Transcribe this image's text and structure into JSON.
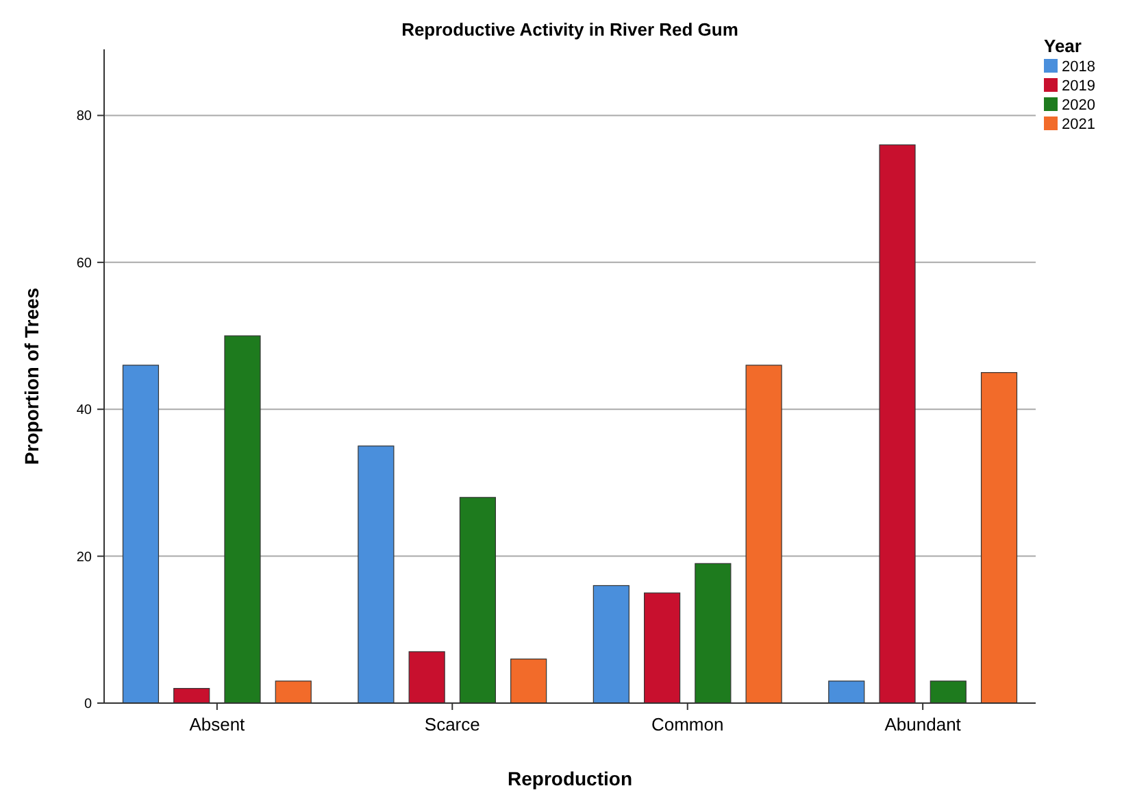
{
  "chart_data": {
    "type": "bar",
    "title": "Reproductive Activity in River Red Gum",
    "xlabel": "Reproduction",
    "ylabel": "Proportion of Trees",
    "legend_title": "Year",
    "categories": [
      "Absent",
      "Scarce",
      "Common",
      "Abundant"
    ],
    "series": [
      {
        "name": "2018",
        "color": "#4a8fdc",
        "values": [
          46,
          35,
          16,
          3
        ]
      },
      {
        "name": "2019",
        "color": "#c8102e",
        "values": [
          2,
          7,
          15,
          76
        ]
      },
      {
        "name": "2020",
        "color": "#1e7b1e",
        "values": [
          50,
          28,
          19,
          3
        ]
      },
      {
        "name": "2021",
        "color": "#f26b2a",
        "values": [
          3,
          6,
          46,
          45
        ]
      }
    ],
    "ylim": [
      0,
      89
    ],
    "yticks": [
      0,
      20,
      40,
      60,
      80
    ],
    "grid": "y",
    "legend": "top right"
  }
}
